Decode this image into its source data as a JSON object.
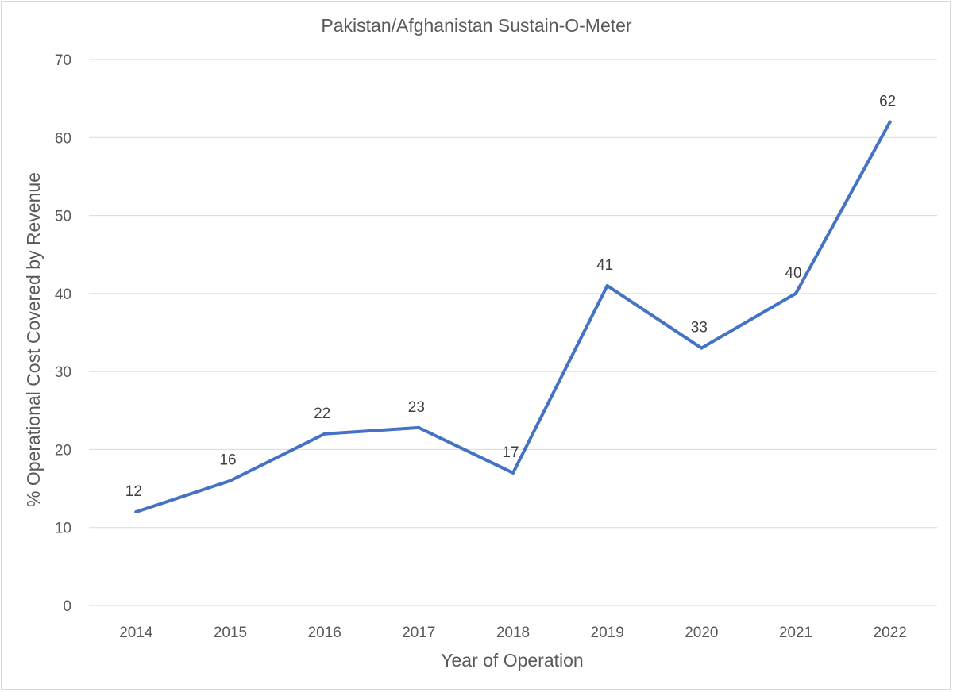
{
  "chart_data": {
    "type": "line",
    "title": "Pakistan/Afghanistan Sustain-O-Meter",
    "xlabel": "Year of Operation",
    "ylabel": "% Operational Cost Covered by Revenue",
    "categories": [
      "2014",
      "2015",
      "2016",
      "2017",
      "2018",
      "2019",
      "2020",
      "2021",
      "2022"
    ],
    "series": [
      {
        "values": [
          12,
          16,
          22,
          22.8,
          17,
          41,
          33,
          40,
          62
        ],
        "data_labels": [
          "12",
          "16",
          "22",
          "23",
          "17",
          "41",
          "33",
          "40",
          "62"
        ],
        "color": "#4472c4"
      }
    ],
    "ylim": [
      0,
      70
    ],
    "yticks": [
      0,
      10,
      20,
      30,
      40,
      50,
      60,
      70
    ],
    "grid": true,
    "legend": "none"
  }
}
